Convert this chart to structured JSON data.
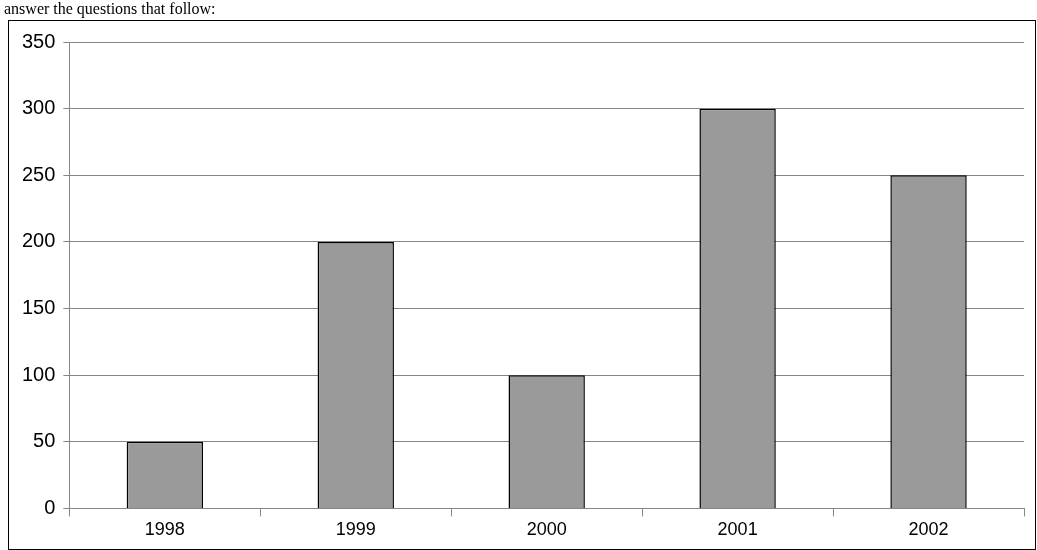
{
  "chart_data": {
    "type": "bar",
    "categories": [
      "1998",
      "1999",
      "2000",
      "2001",
      "2002"
    ],
    "values": [
      50,
      200,
      100,
      300,
      250
    ],
    "color": "#9a9a9a",
    "ylim": [
      0,
      350
    ],
    "yticks": [
      0,
      50,
      100,
      150,
      200,
      250,
      300,
      350
    ],
    "grid": "y",
    "legend": false,
    "annotations": [
      "answer the questions that follow:"
    ]
  }
}
